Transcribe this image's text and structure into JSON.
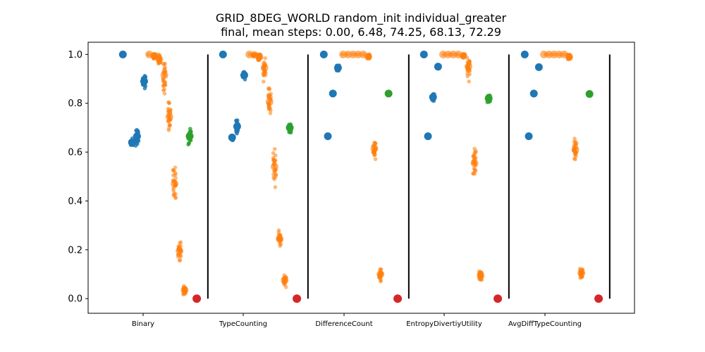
{
  "chart_data": {
    "type": "scatter",
    "title": "GRID_8DEG_WORLD random_init individual_greater",
    "subtitle": "final, mean steps: 0.00, 6.48, 74.25, 68.13, 72.29",
    "xlabel": "",
    "ylabel": "",
    "ylim": [
      -0.06,
      1.05
    ],
    "yticks": [
      "0.0",
      "0.2",
      "0.4",
      "0.6",
      "0.8",
      "1.0"
    ],
    "categories": [
      "Binary",
      "TypeCounting",
      "DifferenceCount",
      "EntropyDivertiyUtility",
      "AvgDiffTypeCounting"
    ],
    "colors": {
      "blue": "#1f77b4",
      "orange": "#ff7f0e",
      "green": "#2ca02c",
      "red": "#d62728",
      "divider": "#000000"
    },
    "groups": [
      {
        "category": "Binary",
        "clusters": [
          {
            "color": "blue",
            "offset": -0.2,
            "mean": 1.0,
            "spread": 0.0
          },
          {
            "color": "blue",
            "offset": -0.11,
            "mean": 0.64,
            "spread": 0.015
          },
          {
            "color": "blue",
            "offset": -0.06,
            "mean": 0.665,
            "spread": 0.03
          },
          {
            "color": "blue",
            "offset": 0.01,
            "mean": 0.89,
            "spread": 0.025
          },
          {
            "color": "orange",
            "offset": 0.06,
            "mean": 1.0,
            "spread": 0.0
          },
          {
            "color": "orange",
            "offset": 0.11,
            "mean": 0.995,
            "spread": 0.01
          },
          {
            "color": "orange",
            "offset": 0.16,
            "mean": 0.98,
            "spread": 0.02
          },
          {
            "color": "orange",
            "offset": 0.21,
            "mean": 0.915,
            "spread": 0.06
          },
          {
            "color": "orange",
            "offset": 0.26,
            "mean": 0.745,
            "spread": 0.08
          },
          {
            "color": "orange",
            "offset": 0.31,
            "mean": 0.47,
            "spread": 0.06
          },
          {
            "color": "orange",
            "offset": 0.36,
            "mean": 0.195,
            "spread": 0.035
          },
          {
            "color": "orange",
            "offset": 0.41,
            "mean": 0.035,
            "spread": 0.015
          },
          {
            "color": "green",
            "offset": 0.46,
            "mean": 0.665,
            "spread": 0.025
          },
          {
            "color": "red",
            "offset": 0.53,
            "mean": 0.0,
            "spread": 0.0
          }
        ]
      },
      {
        "category": "TypeCounting",
        "clusters": [
          {
            "color": "blue",
            "offset": -0.2,
            "mean": 1.0,
            "spread": 0.0
          },
          {
            "color": "blue",
            "offset": -0.11,
            "mean": 0.66,
            "spread": 0.01
          },
          {
            "color": "blue",
            "offset": -0.06,
            "mean": 0.705,
            "spread": 0.025
          },
          {
            "color": "blue",
            "offset": 0.01,
            "mean": 0.915,
            "spread": 0.015
          },
          {
            "color": "orange",
            "offset": 0.06,
            "mean": 1.0,
            "spread": 0.0
          },
          {
            "color": "orange",
            "offset": 0.11,
            "mean": 0.998,
            "spread": 0.005
          },
          {
            "color": "orange",
            "offset": 0.16,
            "mean": 0.99,
            "spread": 0.015
          },
          {
            "color": "orange",
            "offset": 0.21,
            "mean": 0.945,
            "spread": 0.04
          },
          {
            "color": "orange",
            "offset": 0.26,
            "mean": 0.805,
            "spread": 0.06
          },
          {
            "color": "orange",
            "offset": 0.31,
            "mean": 0.54,
            "spread": 0.06
          },
          {
            "color": "orange",
            "offset": 0.36,
            "mean": 0.245,
            "spread": 0.035
          },
          {
            "color": "orange",
            "offset": 0.41,
            "mean": 0.075,
            "spread": 0.02
          },
          {
            "color": "green",
            "offset": 0.46,
            "mean": 0.7,
            "spread": 0.02
          },
          {
            "color": "red",
            "offset": 0.53,
            "mean": 0.0,
            "spread": 0.0
          }
        ]
      },
      {
        "category": "DifferenceCount",
        "clusters": [
          {
            "color": "blue",
            "offset": -0.2,
            "mean": 1.0,
            "spread": 0.0
          },
          {
            "color": "blue",
            "offset": -0.16,
            "mean": 0.665,
            "spread": 0.0
          },
          {
            "color": "blue",
            "offset": -0.11,
            "mean": 0.84,
            "spread": 0.005
          },
          {
            "color": "blue",
            "offset": -0.06,
            "mean": 0.945,
            "spread": 0.01
          },
          {
            "color": "orange",
            "offset": -0.01,
            "mean": 1.0,
            "spread": 0.0
          },
          {
            "color": "orange",
            "offset": 0.04,
            "mean": 1.0,
            "spread": 0.0
          },
          {
            "color": "orange",
            "offset": 0.09,
            "mean": 1.0,
            "spread": 0.0
          },
          {
            "color": "orange",
            "offset": 0.14,
            "mean": 1.0,
            "spread": 0.0
          },
          {
            "color": "orange",
            "offset": 0.19,
            "mean": 1.0,
            "spread": 0.0
          },
          {
            "color": "orange",
            "offset": 0.24,
            "mean": 0.99,
            "spread": 0.01
          },
          {
            "color": "orange",
            "offset": 0.3,
            "mean": 0.615,
            "spread": 0.04
          },
          {
            "color": "orange",
            "offset": 0.36,
            "mean": 0.1,
            "spread": 0.025
          },
          {
            "color": "green",
            "offset": 0.44,
            "mean": 0.84,
            "spread": 0.005
          },
          {
            "color": "red",
            "offset": 0.53,
            "mean": 0.0,
            "spread": 0.0
          }
        ]
      },
      {
        "category": "EntropyDivertiyUtility",
        "clusters": [
          {
            "color": "blue",
            "offset": -0.2,
            "mean": 1.0,
            "spread": 0.0
          },
          {
            "color": "blue",
            "offset": -0.16,
            "mean": 0.665,
            "spread": 0.0
          },
          {
            "color": "blue",
            "offset": -0.11,
            "mean": 0.825,
            "spread": 0.015
          },
          {
            "color": "blue",
            "offset": -0.06,
            "mean": 0.95,
            "spread": 0.0
          },
          {
            "color": "orange",
            "offset": -0.01,
            "mean": 1.0,
            "spread": 0.0
          },
          {
            "color": "orange",
            "offset": 0.04,
            "mean": 1.0,
            "spread": 0.0
          },
          {
            "color": "orange",
            "offset": 0.09,
            "mean": 1.0,
            "spread": 0.0
          },
          {
            "color": "orange",
            "offset": 0.14,
            "mean": 1.0,
            "spread": 0.0
          },
          {
            "color": "orange",
            "offset": 0.19,
            "mean": 0.995,
            "spread": 0.008
          },
          {
            "color": "orange",
            "offset": 0.24,
            "mean": 0.95,
            "spread": 0.04
          },
          {
            "color": "orange",
            "offset": 0.3,
            "mean": 0.555,
            "spread": 0.05
          },
          {
            "color": "orange",
            "offset": 0.36,
            "mean": 0.095,
            "spread": 0.025
          },
          {
            "color": "green",
            "offset": 0.44,
            "mean": 0.82,
            "spread": 0.015
          },
          {
            "color": "red",
            "offset": 0.53,
            "mean": 0.0,
            "spread": 0.0
          }
        ]
      },
      {
        "category": "AvgDiffTypeCounting",
        "clusters": [
          {
            "color": "blue",
            "offset": -0.2,
            "mean": 1.0,
            "spread": 0.0
          },
          {
            "color": "blue",
            "offset": -0.16,
            "mean": 0.665,
            "spread": 0.0
          },
          {
            "color": "blue",
            "offset": -0.11,
            "mean": 0.84,
            "spread": 0.005
          },
          {
            "color": "blue",
            "offset": -0.06,
            "mean": 0.948,
            "spread": 0.005
          },
          {
            "color": "orange",
            "offset": -0.01,
            "mean": 1.0,
            "spread": 0.0
          },
          {
            "color": "orange",
            "offset": 0.04,
            "mean": 1.0,
            "spread": 0.0
          },
          {
            "color": "orange",
            "offset": 0.09,
            "mean": 1.0,
            "spread": 0.0
          },
          {
            "color": "orange",
            "offset": 0.14,
            "mean": 1.0,
            "spread": 0.0
          },
          {
            "color": "orange",
            "offset": 0.19,
            "mean": 1.0,
            "spread": 0.0
          },
          {
            "color": "orange",
            "offset": 0.24,
            "mean": 0.99,
            "spread": 0.01
          },
          {
            "color": "orange",
            "offset": 0.3,
            "mean": 0.61,
            "spread": 0.04
          },
          {
            "color": "orange",
            "offset": 0.36,
            "mean": 0.105,
            "spread": 0.02
          },
          {
            "color": "green",
            "offset": 0.44,
            "mean": 0.838,
            "spread": 0.005
          },
          {
            "color": "red",
            "offset": 0.53,
            "mean": 0.0,
            "spread": 0.0
          }
        ]
      }
    ]
  }
}
